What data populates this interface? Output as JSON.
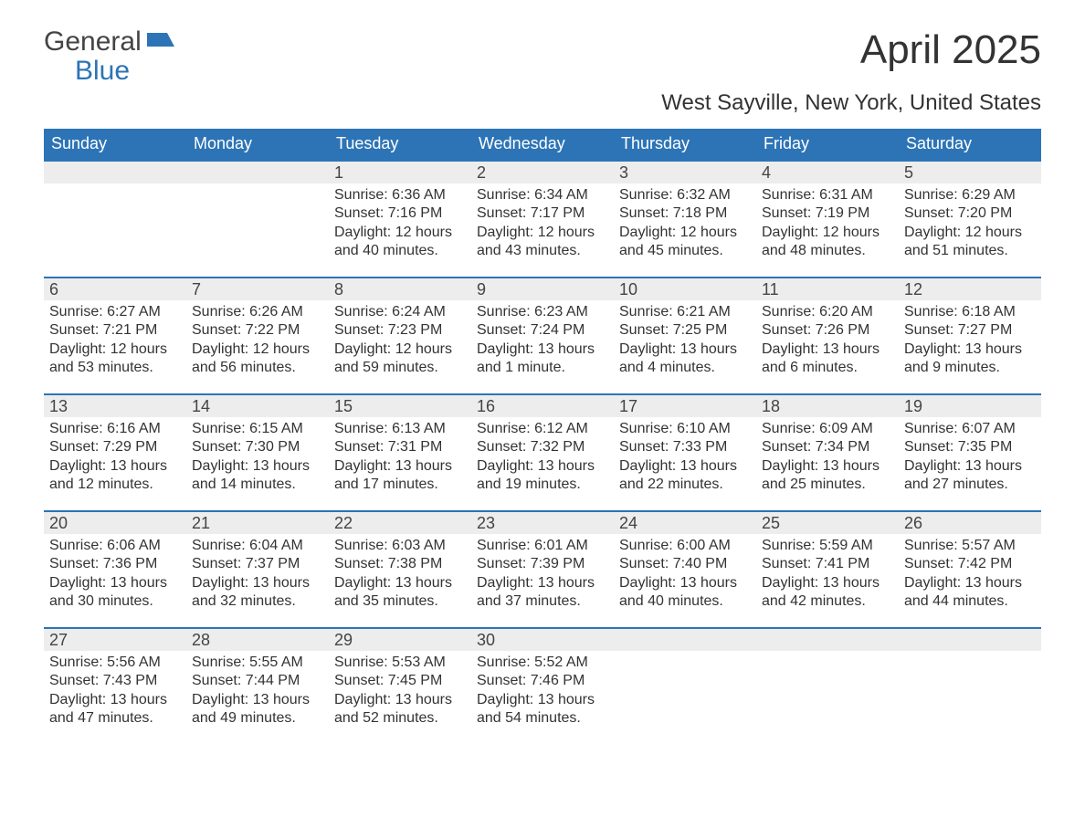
{
  "logo": {
    "line1": "General",
    "line2": "Blue",
    "shape_color": "#2d74b6",
    "text_gray": "#444444"
  },
  "title": "April 2025",
  "subtitle": "West Sayville, New York, United States",
  "header_bg": "#2d74b6",
  "band_bg": "#ededed",
  "day_headers": [
    "Sunday",
    "Monday",
    "Tuesday",
    "Wednesday",
    "Thursday",
    "Friday",
    "Saturday"
  ],
  "weeks": [
    [
      {
        "day": "",
        "lines": []
      },
      {
        "day": "",
        "lines": []
      },
      {
        "day": "1",
        "lines": [
          "Sunrise: 6:36 AM",
          "Sunset: 7:16 PM",
          "Daylight: 12 hours",
          "and 40 minutes."
        ]
      },
      {
        "day": "2",
        "lines": [
          "Sunrise: 6:34 AM",
          "Sunset: 7:17 PM",
          "Daylight: 12 hours",
          "and 43 minutes."
        ]
      },
      {
        "day": "3",
        "lines": [
          "Sunrise: 6:32 AM",
          "Sunset: 7:18 PM",
          "Daylight: 12 hours",
          "and 45 minutes."
        ]
      },
      {
        "day": "4",
        "lines": [
          "Sunrise: 6:31 AM",
          "Sunset: 7:19 PM",
          "Daylight: 12 hours",
          "and 48 minutes."
        ]
      },
      {
        "day": "5",
        "lines": [
          "Sunrise: 6:29 AM",
          "Sunset: 7:20 PM",
          "Daylight: 12 hours",
          "and 51 minutes."
        ]
      }
    ],
    [
      {
        "day": "6",
        "lines": [
          "Sunrise: 6:27 AM",
          "Sunset: 7:21 PM",
          "Daylight: 12 hours",
          "and 53 minutes."
        ]
      },
      {
        "day": "7",
        "lines": [
          "Sunrise: 6:26 AM",
          "Sunset: 7:22 PM",
          "Daylight: 12 hours",
          "and 56 minutes."
        ]
      },
      {
        "day": "8",
        "lines": [
          "Sunrise: 6:24 AM",
          "Sunset: 7:23 PM",
          "Daylight: 12 hours",
          "and 59 minutes."
        ]
      },
      {
        "day": "9",
        "lines": [
          "Sunrise: 6:23 AM",
          "Sunset: 7:24 PM",
          "Daylight: 13 hours",
          "and 1 minute."
        ]
      },
      {
        "day": "10",
        "lines": [
          "Sunrise: 6:21 AM",
          "Sunset: 7:25 PM",
          "Daylight: 13 hours",
          "and 4 minutes."
        ]
      },
      {
        "day": "11",
        "lines": [
          "Sunrise: 6:20 AM",
          "Sunset: 7:26 PM",
          "Daylight: 13 hours",
          "and 6 minutes."
        ]
      },
      {
        "day": "12",
        "lines": [
          "Sunrise: 6:18 AM",
          "Sunset: 7:27 PM",
          "Daylight: 13 hours",
          "and 9 minutes."
        ]
      }
    ],
    [
      {
        "day": "13",
        "lines": [
          "Sunrise: 6:16 AM",
          "Sunset: 7:29 PM",
          "Daylight: 13 hours",
          "and 12 minutes."
        ]
      },
      {
        "day": "14",
        "lines": [
          "Sunrise: 6:15 AM",
          "Sunset: 7:30 PM",
          "Daylight: 13 hours",
          "and 14 minutes."
        ]
      },
      {
        "day": "15",
        "lines": [
          "Sunrise: 6:13 AM",
          "Sunset: 7:31 PM",
          "Daylight: 13 hours",
          "and 17 minutes."
        ]
      },
      {
        "day": "16",
        "lines": [
          "Sunrise: 6:12 AM",
          "Sunset: 7:32 PM",
          "Daylight: 13 hours",
          "and 19 minutes."
        ]
      },
      {
        "day": "17",
        "lines": [
          "Sunrise: 6:10 AM",
          "Sunset: 7:33 PM",
          "Daylight: 13 hours",
          "and 22 minutes."
        ]
      },
      {
        "day": "18",
        "lines": [
          "Sunrise: 6:09 AM",
          "Sunset: 7:34 PM",
          "Daylight: 13 hours",
          "and 25 minutes."
        ]
      },
      {
        "day": "19",
        "lines": [
          "Sunrise: 6:07 AM",
          "Sunset: 7:35 PM",
          "Daylight: 13 hours",
          "and 27 minutes."
        ]
      }
    ],
    [
      {
        "day": "20",
        "lines": [
          "Sunrise: 6:06 AM",
          "Sunset: 7:36 PM",
          "Daylight: 13 hours",
          "and 30 minutes."
        ]
      },
      {
        "day": "21",
        "lines": [
          "Sunrise: 6:04 AM",
          "Sunset: 7:37 PM",
          "Daylight: 13 hours",
          "and 32 minutes."
        ]
      },
      {
        "day": "22",
        "lines": [
          "Sunrise: 6:03 AM",
          "Sunset: 7:38 PM",
          "Daylight: 13 hours",
          "and 35 minutes."
        ]
      },
      {
        "day": "23",
        "lines": [
          "Sunrise: 6:01 AM",
          "Sunset: 7:39 PM",
          "Daylight: 13 hours",
          "and 37 minutes."
        ]
      },
      {
        "day": "24",
        "lines": [
          "Sunrise: 6:00 AM",
          "Sunset: 7:40 PM",
          "Daylight: 13 hours",
          "and 40 minutes."
        ]
      },
      {
        "day": "25",
        "lines": [
          "Sunrise: 5:59 AM",
          "Sunset: 7:41 PM",
          "Daylight: 13 hours",
          "and 42 minutes."
        ]
      },
      {
        "day": "26",
        "lines": [
          "Sunrise: 5:57 AM",
          "Sunset: 7:42 PM",
          "Daylight: 13 hours",
          "and 44 minutes."
        ]
      }
    ],
    [
      {
        "day": "27",
        "lines": [
          "Sunrise: 5:56 AM",
          "Sunset: 7:43 PM",
          "Daylight: 13 hours",
          "and 47 minutes."
        ]
      },
      {
        "day": "28",
        "lines": [
          "Sunrise: 5:55 AM",
          "Sunset: 7:44 PM",
          "Daylight: 13 hours",
          "and 49 minutes."
        ]
      },
      {
        "day": "29",
        "lines": [
          "Sunrise: 5:53 AM",
          "Sunset: 7:45 PM",
          "Daylight: 13 hours",
          "and 52 minutes."
        ]
      },
      {
        "day": "30",
        "lines": [
          "Sunrise: 5:52 AM",
          "Sunset: 7:46 PM",
          "Daylight: 13 hours",
          "and 54 minutes."
        ]
      },
      {
        "day": "",
        "lines": []
      },
      {
        "day": "",
        "lines": []
      },
      {
        "day": "",
        "lines": []
      }
    ]
  ]
}
